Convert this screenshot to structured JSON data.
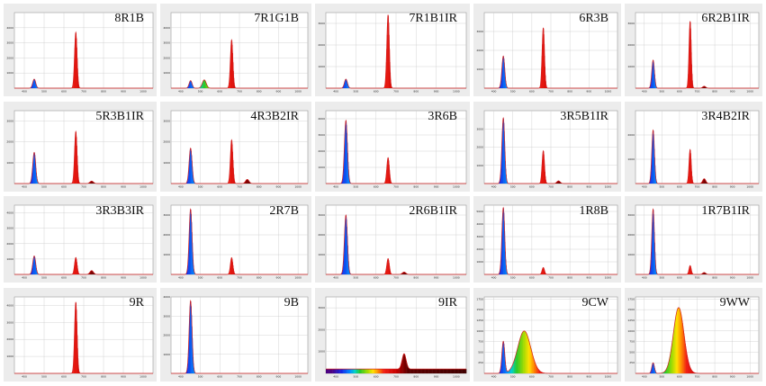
{
  "colors": {
    "panel_bg": "#ececec",
    "plot_bg": "#ffffff",
    "grid": "#c9c9c9",
    "axis": "#9a9a9a",
    "baseline": "#d22020"
  },
  "chart_data": [
    {
      "type": "area",
      "title": "8R1B",
      "xlim": [
        350,
        1050
      ],
      "ylim": [
        0,
        5000
      ],
      "x_ticks": [
        400,
        500,
        600,
        700,
        800,
        900,
        1000
      ],
      "y_ticks": [
        1000,
        2000,
        3000,
        4000
      ],
      "peaks": [
        {
          "wavelength_nm": 450,
          "height": 600,
          "width_nm": 12
        },
        {
          "wavelength_nm": 660,
          "height": 3700,
          "width_nm": 10
        }
      ]
    },
    {
      "type": "area",
      "title": "7R1G1B",
      "xlim": [
        350,
        1050
      ],
      "ylim": [
        0,
        5000
      ],
      "x_ticks": [
        400,
        500,
        600,
        700,
        800,
        900,
        1000
      ],
      "y_ticks": [
        1000,
        2000,
        3000,
        4000
      ],
      "peaks": [
        {
          "wavelength_nm": 450,
          "height": 500,
          "width_nm": 12
        },
        {
          "wavelength_nm": 520,
          "height": 550,
          "width_nm": 16
        },
        {
          "wavelength_nm": 660,
          "height": 3200,
          "width_nm": 10
        }
      ]
    },
    {
      "type": "area",
      "title": "7R1B1IR",
      "xlim": [
        350,
        1050
      ],
      "ylim": [
        0,
        3500
      ],
      "x_ticks": [
        400,
        500,
        600,
        700,
        800,
        900,
        1000
      ],
      "y_ticks": [
        1000,
        2000,
        3000
      ],
      "peaks": [
        {
          "wavelength_nm": 450,
          "height": 420,
          "width_nm": 12
        },
        {
          "wavelength_nm": 660,
          "height": 3400,
          "width_nm": 10
        }
      ]
    },
    {
      "type": "area",
      "title": "6R3B",
      "xlim": [
        350,
        1050
      ],
      "ylim": [
        0,
        4000
      ],
      "x_ticks": [
        400,
        500,
        600,
        700,
        800,
        900,
        1000
      ],
      "y_ticks": [
        1000,
        2000,
        3000
      ],
      "peaks": [
        {
          "wavelength_nm": 450,
          "height": 1700,
          "width_nm": 12
        },
        {
          "wavelength_nm": 660,
          "height": 3200,
          "width_nm": 10
        }
      ]
    },
    {
      "type": "area",
      "title": "6R2B1IR",
      "xlim": [
        350,
        1050
      ],
      "ylim": [
        0,
        3500
      ],
      "x_ticks": [
        400,
        500,
        600,
        700,
        800,
        900,
        1000
      ],
      "y_ticks": [
        1000,
        2000,
        3000
      ],
      "peaks": [
        {
          "wavelength_nm": 450,
          "height": 1300,
          "width_nm": 12
        },
        {
          "wavelength_nm": 660,
          "height": 3100,
          "width_nm": 10
        },
        {
          "wavelength_nm": 740,
          "height": 90,
          "width_nm": 14
        }
      ]
    },
    {
      "type": "area",
      "title": "5R3B1IR",
      "xlim": [
        350,
        1050
      ],
      "ylim": [
        0,
        3500
      ],
      "x_ticks": [
        400,
        500,
        600,
        700,
        800,
        900,
        1000
      ],
      "y_ticks": [
        1000,
        2000,
        3000
      ],
      "peaks": [
        {
          "wavelength_nm": 450,
          "height": 1500,
          "width_nm": 12
        },
        {
          "wavelength_nm": 660,
          "height": 2500,
          "width_nm": 10
        },
        {
          "wavelength_nm": 740,
          "height": 120,
          "width_nm": 14
        }
      ]
    },
    {
      "type": "area",
      "title": "4R3B2IR",
      "xlim": [
        350,
        1050
      ],
      "ylim": [
        0,
        3500
      ],
      "x_ticks": [
        400,
        500,
        600,
        700,
        800,
        900,
        1000
      ],
      "y_ticks": [
        1000,
        2000,
        3000
      ],
      "peaks": [
        {
          "wavelength_nm": 450,
          "height": 1700,
          "width_nm": 12
        },
        {
          "wavelength_nm": 660,
          "height": 2100,
          "width_nm": 10
        },
        {
          "wavelength_nm": 740,
          "height": 200,
          "width_nm": 14
        }
      ]
    },
    {
      "type": "area",
      "title": "3R6B",
      "xlim": [
        350,
        1050
      ],
      "ylim": [
        0,
        4500
      ],
      "x_ticks": [
        400,
        500,
        600,
        700,
        800,
        900,
        1000
      ],
      "y_ticks": [
        1000,
        2000,
        3000,
        4000
      ],
      "peaks": [
        {
          "wavelength_nm": 450,
          "height": 3900,
          "width_nm": 12
        },
        {
          "wavelength_nm": 660,
          "height": 1600,
          "width_nm": 10
        }
      ]
    },
    {
      "type": "area",
      "title": "3R5B1IR",
      "xlim": [
        350,
        1050
      ],
      "ylim": [
        0,
        4000
      ],
      "x_ticks": [
        400,
        500,
        600,
        700,
        800,
        900,
        1000
      ],
      "y_ticks": [
        1000,
        2000,
        3000
      ],
      "peaks": [
        {
          "wavelength_nm": 450,
          "height": 3600,
          "width_nm": 12
        },
        {
          "wavelength_nm": 660,
          "height": 1800,
          "width_nm": 10
        },
        {
          "wavelength_nm": 740,
          "height": 150,
          "width_nm": 14
        }
      ]
    },
    {
      "type": "area",
      "title": "3R4B2IR",
      "xlim": [
        350,
        1050
      ],
      "ylim": [
        0,
        3000
      ],
      "x_ticks": [
        400,
        500,
        600,
        700,
        800,
        900,
        1000
      ],
      "y_ticks": [
        1000,
        2000
      ],
      "peaks": [
        {
          "wavelength_nm": 450,
          "height": 2200,
          "width_nm": 12
        },
        {
          "wavelength_nm": 660,
          "height": 1400,
          "width_nm": 10
        },
        {
          "wavelength_nm": 740,
          "height": 200,
          "width_nm": 14
        }
      ]
    },
    {
      "type": "area",
      "title": "3R3B3IR",
      "xlim": [
        350,
        1050
      ],
      "ylim": [
        0,
        4500
      ],
      "x_ticks": [
        400,
        500,
        600,
        700,
        800,
        900,
        1000
      ],
      "y_ticks": [
        1000,
        2000,
        3000,
        4000
      ],
      "peaks": [
        {
          "wavelength_nm": 450,
          "height": 1200,
          "width_nm": 12
        },
        {
          "wavelength_nm": 660,
          "height": 1100,
          "width_nm": 10
        },
        {
          "wavelength_nm": 740,
          "height": 250,
          "width_nm": 14
        }
      ]
    },
    {
      "type": "area",
      "title": "2R7B",
      "xlim": [
        350,
        1050
      ],
      "ylim": [
        0,
        3500
      ],
      "x_ticks": [
        400,
        500,
        600,
        700,
        800,
        900,
        1000
      ],
      "y_ticks": [
        1000,
        2000,
        3000
      ],
      "peaks": [
        {
          "wavelength_nm": 450,
          "height": 3300,
          "width_nm": 12
        },
        {
          "wavelength_nm": 660,
          "height": 850,
          "width_nm": 10
        }
      ]
    },
    {
      "type": "area",
      "title": "2R6B1IR",
      "xlim": [
        350,
        1050
      ],
      "ylim": [
        0,
        3500
      ],
      "x_ticks": [
        400,
        500,
        600,
        700,
        800,
        900,
        1000
      ],
      "y_ticks": [
        1000,
        2000,
        3000
      ],
      "peaks": [
        {
          "wavelength_nm": 450,
          "height": 3000,
          "width_nm": 12
        },
        {
          "wavelength_nm": 660,
          "height": 800,
          "width_nm": 10
        },
        {
          "wavelength_nm": 740,
          "height": 120,
          "width_nm": 14
        }
      ]
    },
    {
      "type": "area",
      "title": "1R8B",
      "xlim": [
        350,
        1050
      ],
      "ylim": [
        0,
        5500
      ],
      "x_ticks": [
        400,
        500,
        600,
        700,
        800,
        900,
        1000
      ],
      "y_ticks": [
        1000,
        2000,
        3000,
        4000,
        5000
      ],
      "peaks": [
        {
          "wavelength_nm": 450,
          "height": 5300,
          "width_nm": 12
        },
        {
          "wavelength_nm": 660,
          "height": 550,
          "width_nm": 10
        }
      ]
    },
    {
      "type": "area",
      "title": "1R7B1IR",
      "xlim": [
        350,
        1050
      ],
      "ylim": [
        0,
        3500
      ],
      "x_ticks": [
        400,
        500,
        600,
        700,
        800,
        900,
        1000
      ],
      "y_ticks": [
        1000,
        2000,
        3000
      ],
      "peaks": [
        {
          "wavelength_nm": 450,
          "height": 3300,
          "width_nm": 12
        },
        {
          "wavelength_nm": 660,
          "height": 450,
          "width_nm": 10
        },
        {
          "wavelength_nm": 740,
          "height": 100,
          "width_nm": 14
        }
      ]
    },
    {
      "type": "area",
      "title": "9R",
      "xlim": [
        350,
        1050
      ],
      "ylim": [
        0,
        4500
      ],
      "x_ticks": [
        400,
        500,
        600,
        700,
        800,
        900,
        1000
      ],
      "y_ticks": [
        1000,
        2000,
        3000,
        4000
      ],
      "peaks": [
        {
          "wavelength_nm": 660,
          "height": 4200,
          "width_nm": 10
        }
      ]
    },
    {
      "type": "area",
      "title": "9B",
      "xlim": [
        350,
        1050
      ],
      "ylim": [
        0,
        4000
      ],
      "x_ticks": [
        400,
        500,
        600,
        700,
        800,
        900,
        1000
      ],
      "y_ticks": [
        1000,
        2000,
        3000,
        4000
      ],
      "peaks": [
        {
          "wavelength_nm": 450,
          "height": 3800,
          "width_nm": 12
        }
      ]
    },
    {
      "type": "area",
      "title": "9IR",
      "xlim": [
        350,
        1050
      ],
      "ylim": [
        0,
        3500
      ],
      "x_ticks": [
        400,
        500,
        600,
        700,
        800,
        900,
        1000
      ],
      "y_ticks": [
        1000,
        2000,
        3000
      ],
      "peaks": [
        {
          "wavelength_nm": 740,
          "height": 700,
          "width_nm": 16
        }
      ],
      "baseline": 200
    },
    {
      "type": "area",
      "title": "9CW",
      "xlim": [
        350,
        1050
      ],
      "ylim": [
        0,
        1800
      ],
      "x_ticks": [
        400,
        500,
        600,
        700,
        800,
        900,
        1000
      ],
      "y_ticks": [
        250,
        500,
        750,
        1000,
        1250,
        1500,
        1750
      ],
      "peaks": [
        {
          "wavelength_nm": 450,
          "height": 750,
          "width_nm": 12
        },
        {
          "wavelength_nm": 560,
          "height": 1000,
          "width_nm": 55
        }
      ]
    },
    {
      "type": "area",
      "title": "9WW",
      "xlim": [
        350,
        1050
      ],
      "ylim": [
        0,
        1800
      ],
      "x_ticks": [
        400,
        500,
        600,
        700,
        800,
        900,
        1000
      ],
      "y_ticks": [
        250,
        500,
        750,
        1000,
        1250,
        1500,
        1750
      ],
      "peaks": [
        {
          "wavelength_nm": 450,
          "height": 250,
          "width_nm": 12
        },
        {
          "wavelength_nm": 595,
          "height": 1550,
          "width_nm": 48
        }
      ]
    }
  ]
}
